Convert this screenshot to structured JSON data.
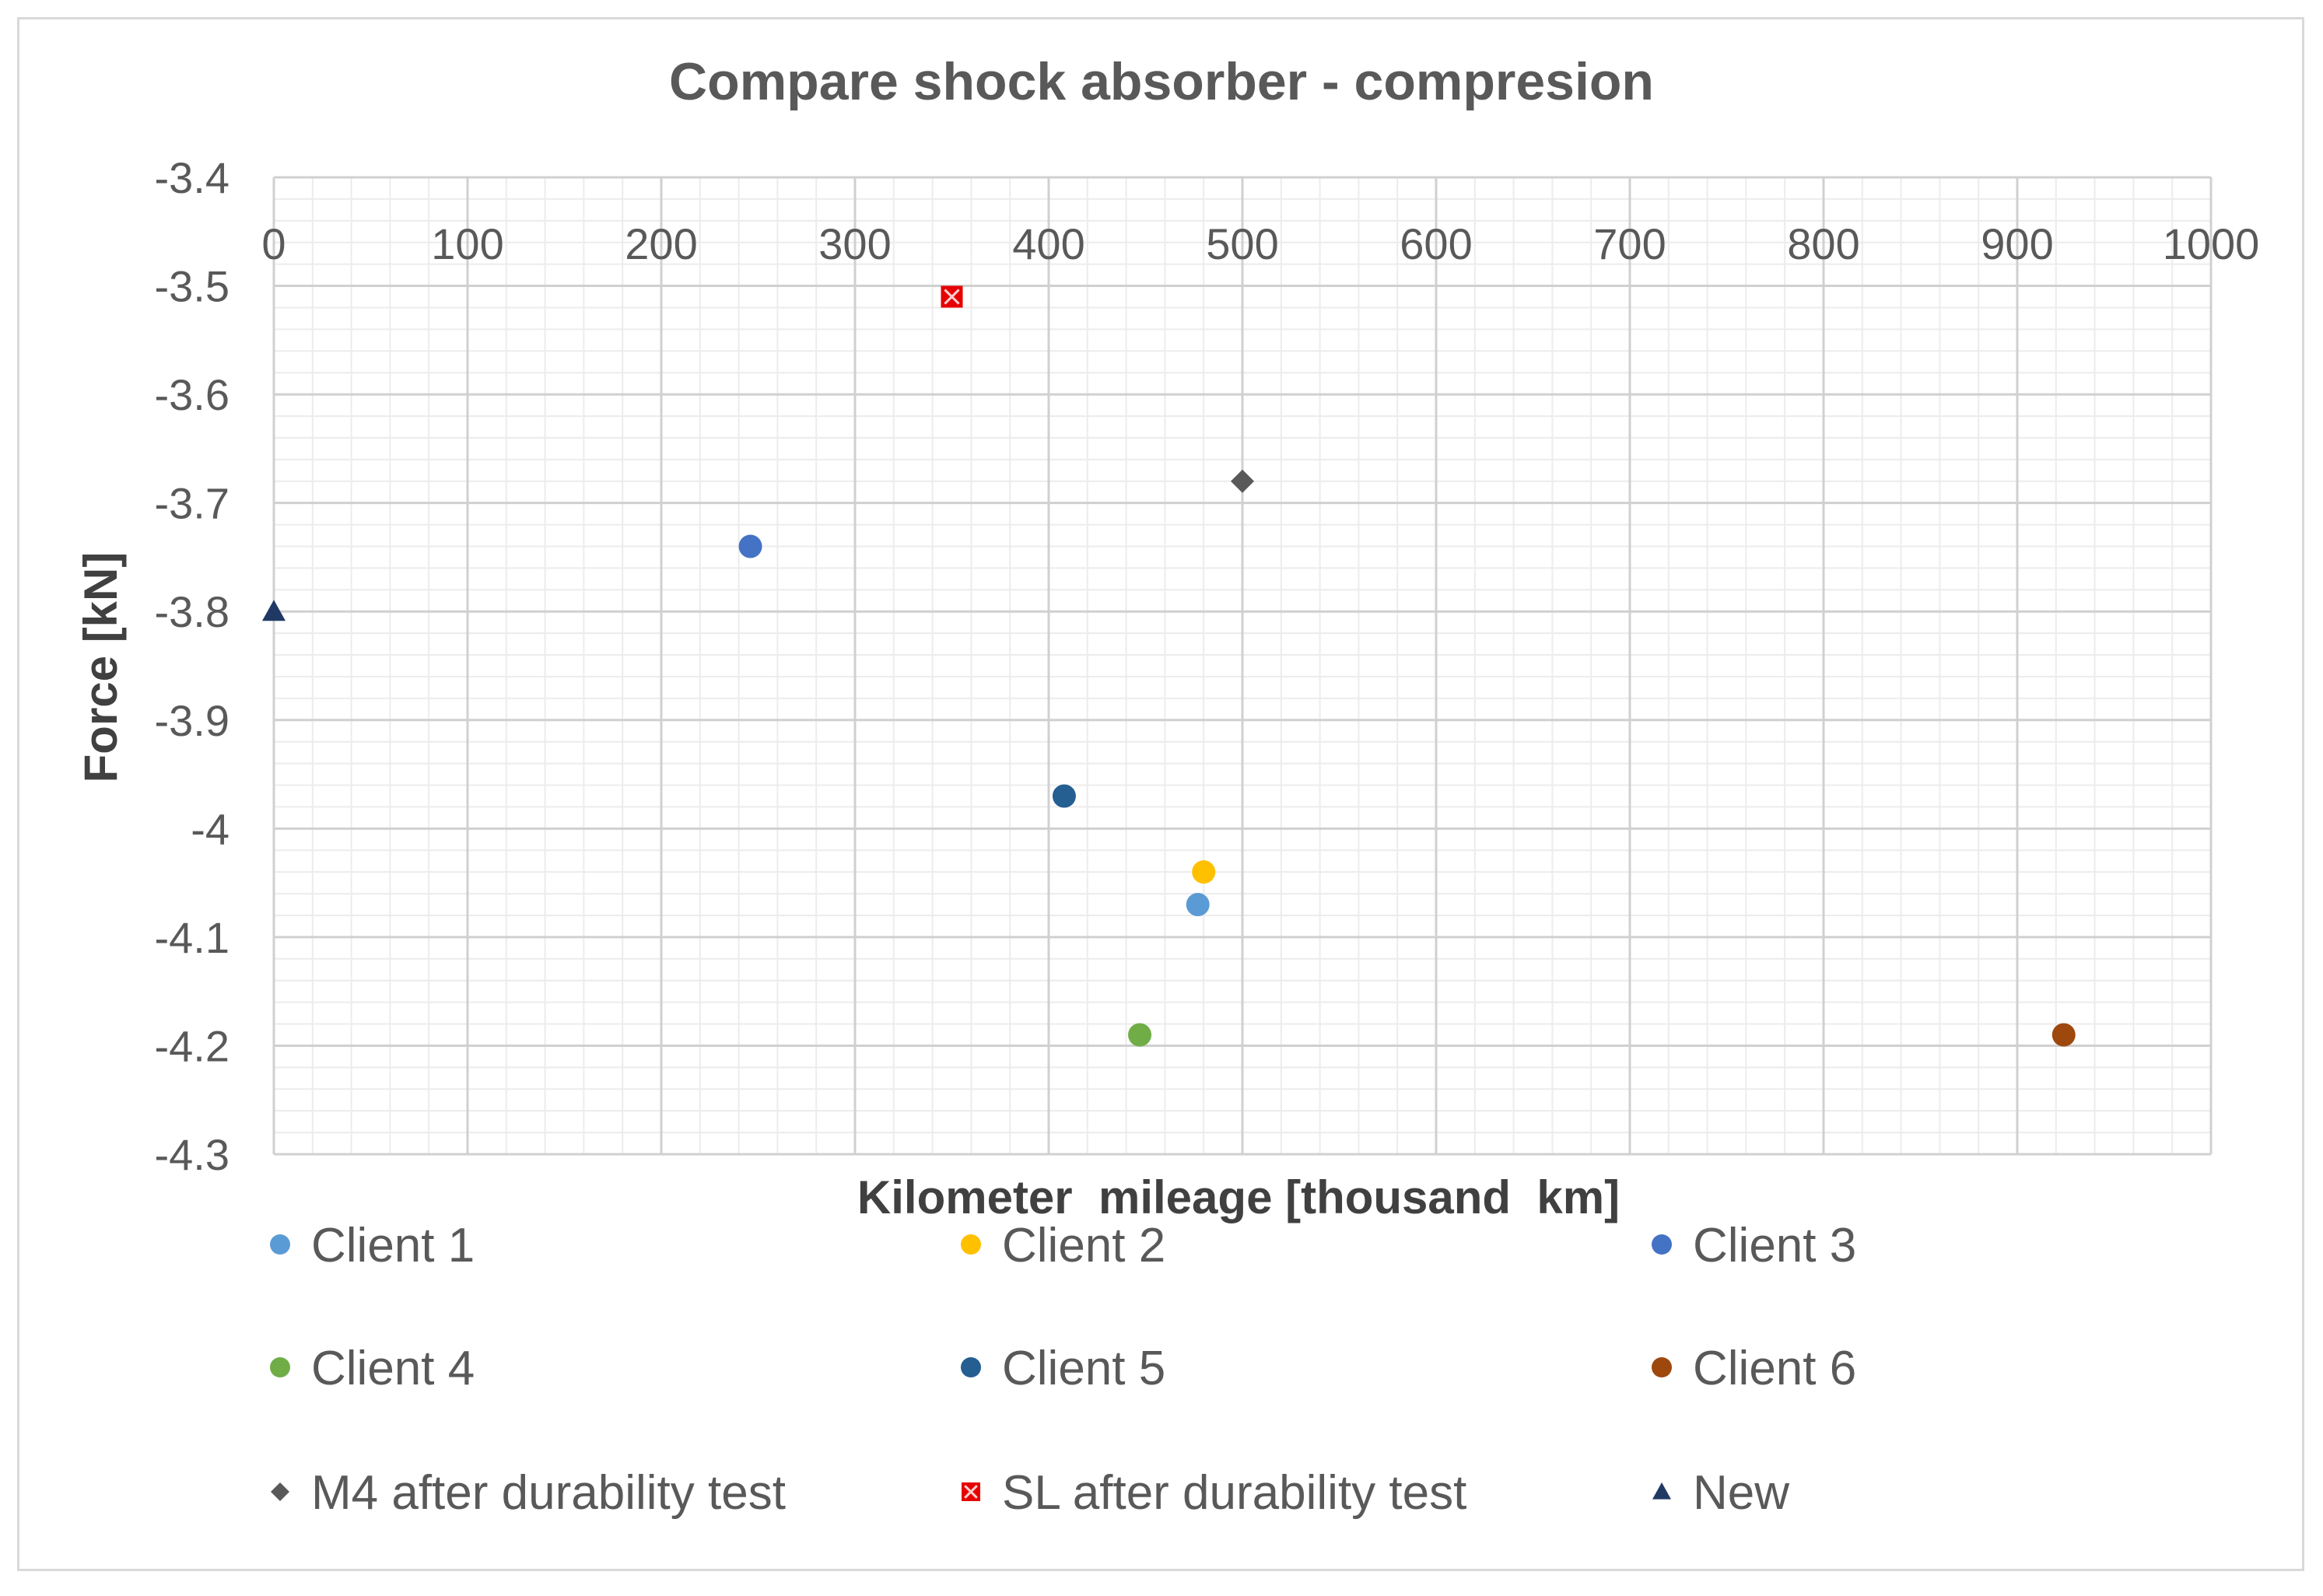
{
  "chart_data": {
    "type": "scatter",
    "title": "Compare shock absorber - compresion",
    "xlabel": "Kilometer  mileage [thousand  km]",
    "ylabel": "Force [kN]",
    "xlim": [
      0,
      1000
    ],
    "ylim": [
      -4.3,
      -3.4
    ],
    "x_ticks": [
      "0",
      "100",
      "200",
      "300",
      "400",
      "500",
      "600",
      "700",
      "800",
      "900",
      "1000"
    ],
    "y_ticks": [
      "-3.4",
      "-3.5",
      "-3.6",
      "-3.7",
      "-3.8",
      "-3.9",
      "-4",
      "-4.1",
      "-4.2",
      "-4.3"
    ],
    "x_tick_values": [
      0,
      100,
      200,
      300,
      400,
      500,
      600,
      700,
      800,
      900,
      1000
    ],
    "y_tick_values": [
      -3.4,
      -3.5,
      -3.6,
      -3.7,
      -3.8,
      -3.9,
      -4.0,
      -4.1,
      -4.2,
      -4.3
    ],
    "x_axis_position": "top",
    "grid": true,
    "legend_position": "bottom",
    "series": [
      {
        "name": "Client 1",
        "marker": "circle",
        "color": "#5b9bd5",
        "x": [
          477
        ],
        "y": [
          -4.07
        ]
      },
      {
        "name": "Client 2",
        "marker": "circle",
        "color": "#ffc000",
        "x": [
          480
        ],
        "y": [
          -4.04
        ]
      },
      {
        "name": "Client 3",
        "marker": "circle",
        "color": "#4472c4",
        "x": [
          246
        ],
        "y": [
          -3.74
        ]
      },
      {
        "name": "Client 4",
        "marker": "circle",
        "color": "#70ad47",
        "x": [
          447
        ],
        "y": [
          -4.19
        ]
      },
      {
        "name": "Client 5",
        "marker": "circle",
        "color": "#255e91",
        "x": [
          408
        ],
        "y": [
          -3.97
        ]
      },
      {
        "name": "Client 6",
        "marker": "circle",
        "color": "#9e480e",
        "x": [
          924
        ],
        "y": [
          -4.19
        ]
      },
      {
        "name": "M4 after durability test",
        "marker": "diamond",
        "color": "#595959",
        "x": [
          500
        ],
        "y": [
          -3.68
        ]
      },
      {
        "name": "SL after durability test",
        "marker": "square-x",
        "color": "#e60000",
        "x": [
          350
        ],
        "y": [
          -3.51
        ]
      },
      {
        "name": "New",
        "marker": "triangle",
        "color": "#203864",
        "x": [
          0
        ],
        "y": [
          -3.8
        ]
      }
    ]
  }
}
